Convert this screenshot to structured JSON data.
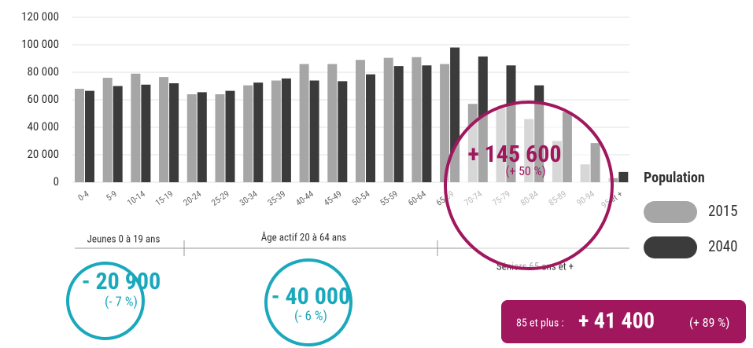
{
  "chart_data": {
    "type": "bar",
    "categories": [
      "0-4",
      "5-9",
      "10-14",
      "15-19",
      "20-24",
      "25-29",
      "30-34",
      "35-39",
      "40-44",
      "45-49",
      "50-54",
      "55-59",
      "60-64",
      "65-69",
      "70-74",
      "75-79",
      "80-84",
      "85-89",
      "90-94",
      "95 et +"
    ],
    "series": [
      {
        "name": "2015",
        "color": "#a6a6a6",
        "values": [
          68000,
          76000,
          79000,
          76500,
          64000,
          64000,
          70500,
          74000,
          86000,
          86000,
          89000,
          90500,
          91000,
          86000,
          57000,
          54000,
          46000,
          30000,
          13000,
          3000
        ]
      },
      {
        "name": "2040",
        "color": "#3b3b3b",
        "values": [
          66500,
          70000,
          71000,
          72000,
          65500,
          66500,
          72500,
          75500,
          74000,
          73500,
          78500,
          84500,
          85000,
          98000,
          91500,
          85000,
          70500,
          51000,
          28500,
          7500
        ]
      }
    ],
    "ylim": [
      0,
      120000
    ],
    "yticks": [
      0,
      {
        "value": 20000,
        "label": "20 000"
      },
      {
        "value": 40000,
        "label": "40 000"
      },
      {
        "value": 60000,
        "label": "60 000"
      },
      {
        "value": 80000,
        "label": "80 000"
      },
      {
        "value": 100000,
        "label": "100 000"
      },
      {
        "value": 120000,
        "label": "120 000"
      }
    ],
    "grid": true,
    "legend_title": "Population",
    "groups": [
      {
        "label": "Jeunes 0 à 19 ans",
        "value": "- 20 900",
        "pct": "(- 7 %)"
      },
      {
        "label": "Âge actif 20 à 64 ans",
        "value": "- 40 000",
        "pct": "(- 6 %)"
      },
      {
        "label": "Séniors 65 ans et +",
        "value": "+ 145 600",
        "pct": "(+ 50 %)"
      }
    ],
    "highlight": {
      "label": "85 et plus :",
      "value": "+ 41 400",
      "pct": "(+ 89 %)"
    }
  }
}
